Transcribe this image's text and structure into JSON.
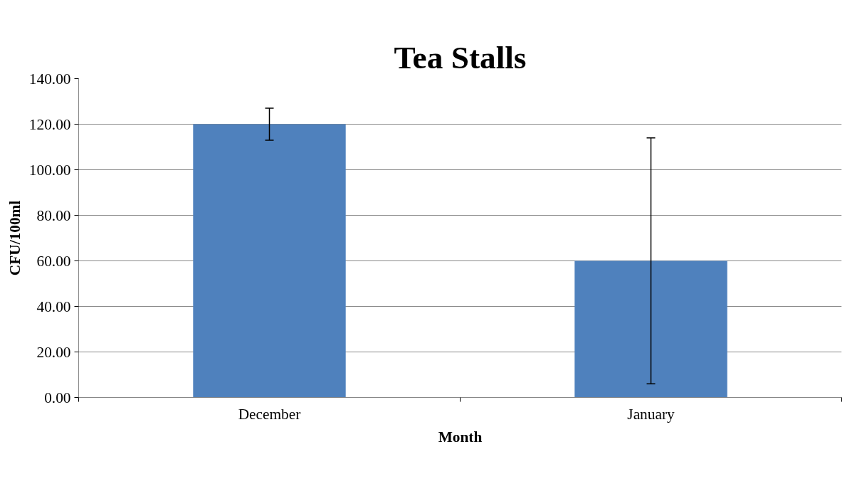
{
  "chart_data": {
    "type": "bar",
    "title": "Tea Stalls",
    "xlabel": "Month",
    "ylabel": "CFU/100ml",
    "categories": [
      "December",
      "January"
    ],
    "values": [
      120,
      60
    ],
    "errors": [
      7,
      54
    ],
    "color": "#4f81bd",
    "ylim": [
      0,
      140
    ],
    "yticks": [
      {
        "value": 0,
        "label": "0.00"
      },
      {
        "value": 20,
        "label": "20.00"
      },
      {
        "value": 40,
        "label": "40.00"
      },
      {
        "value": 60,
        "label": "60.00"
      },
      {
        "value": 80,
        "label": "80.00"
      },
      {
        "value": 100,
        "label": "100.00"
      },
      {
        "value": 120,
        "label": "120.00"
      },
      {
        "value": 140,
        "label": "140.00"
      }
    ],
    "grid": "y"
  }
}
